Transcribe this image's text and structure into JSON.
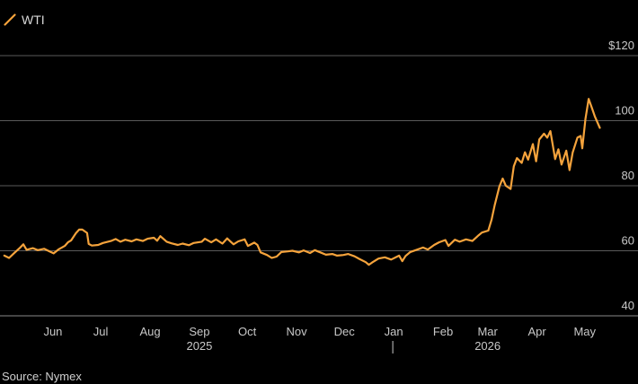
{
  "legend": {
    "series_name": "WTI",
    "color": "#f5a33c"
  },
  "source": "Source: Nymex",
  "chart_data": {
    "type": "line",
    "title": "",
    "xlabel": "",
    "ylabel": "",
    "ylim": [
      40,
      125
    ],
    "y_ticks": [
      {
        "value": 120,
        "label": "$120"
      },
      {
        "value": 100,
        "label": "100"
      },
      {
        "value": 80,
        "label": "80"
      },
      {
        "value": 60,
        "label": "60"
      },
      {
        "value": 40,
        "label": "40"
      }
    ],
    "x_ticks": [
      {
        "date": "2025-06-01",
        "label": "Jun"
      },
      {
        "date": "2025-07-01",
        "label": "Jul"
      },
      {
        "date": "2025-08-01",
        "label": "Aug"
      },
      {
        "date": "2025-09-01",
        "label": "Sep"
      },
      {
        "date": "2025-10-01",
        "label": "Oct"
      },
      {
        "date": "2025-11-01",
        "label": "Nov"
      },
      {
        "date": "2025-12-01",
        "label": "Dec"
      },
      {
        "date": "2026-01-01",
        "label": "Jan"
      },
      {
        "date": "2026-02-01",
        "label": "Feb"
      },
      {
        "date": "2026-03-01",
        "label": "Mar"
      },
      {
        "date": "2026-04-01",
        "label": "Apr"
      },
      {
        "date": "2026-05-01",
        "label": "May"
      }
    ],
    "year_labels": [
      {
        "date": "2025-09-01",
        "label": "2025"
      },
      {
        "date": "2026-03-01",
        "label": "2026"
      }
    ],
    "grid": true,
    "legend_position": "top-left",
    "series": [
      {
        "name": "WTI",
        "color": "#f5a33c",
        "points": [
          [
            "2025-05-02",
            58.5
          ],
          [
            "2025-05-05",
            57.8
          ],
          [
            "2025-05-08",
            59.2
          ],
          [
            "2025-05-12",
            61.0
          ],
          [
            "2025-05-14",
            62.0
          ],
          [
            "2025-05-16",
            60.3
          ],
          [
            "2025-05-20",
            60.8
          ],
          [
            "2025-05-23",
            60.2
          ],
          [
            "2025-05-27",
            60.6
          ],
          [
            "2025-05-30",
            59.9
          ],
          [
            "2025-06-02",
            59.2
          ],
          [
            "2025-06-05",
            60.4
          ],
          [
            "2025-06-09",
            61.5
          ],
          [
            "2025-06-11",
            62.6
          ],
          [
            "2025-06-13",
            63.2
          ],
          [
            "2025-06-16",
            65.4
          ],
          [
            "2025-06-18",
            66.5
          ],
          [
            "2025-06-20",
            66.5
          ],
          [
            "2025-06-23",
            65.5
          ],
          [
            "2025-06-24",
            62.1
          ],
          [
            "2025-06-26",
            61.6
          ],
          [
            "2025-06-30",
            61.8
          ],
          [
            "2025-07-03",
            62.4
          ],
          [
            "2025-07-08",
            63.0
          ],
          [
            "2025-07-11",
            63.6
          ],
          [
            "2025-07-14",
            62.8
          ],
          [
            "2025-07-17",
            63.4
          ],
          [
            "2025-07-21",
            62.9
          ],
          [
            "2025-07-24",
            63.5
          ],
          [
            "2025-07-28",
            63.0
          ],
          [
            "2025-07-31",
            63.7
          ],
          [
            "2025-08-04",
            64.0
          ],
          [
            "2025-08-06",
            63.1
          ],
          [
            "2025-08-08",
            64.5
          ],
          [
            "2025-08-12",
            62.8
          ],
          [
            "2025-08-15",
            62.3
          ],
          [
            "2025-08-19",
            61.8
          ],
          [
            "2025-08-22",
            62.2
          ],
          [
            "2025-08-26",
            61.7
          ],
          [
            "2025-08-29",
            62.4
          ],
          [
            "2025-09-03",
            62.8
          ],
          [
            "2025-09-05",
            63.7
          ],
          [
            "2025-09-09",
            62.6
          ],
          [
            "2025-09-12",
            63.5
          ],
          [
            "2025-09-16",
            62.2
          ],
          [
            "2025-09-19",
            63.8
          ],
          [
            "2025-09-23",
            62.0
          ],
          [
            "2025-09-26",
            62.9
          ],
          [
            "2025-09-30",
            63.5
          ],
          [
            "2025-10-02",
            61.5
          ],
          [
            "2025-10-06",
            62.5
          ],
          [
            "2025-10-08",
            61.8
          ],
          [
            "2025-10-10",
            59.5
          ],
          [
            "2025-10-14",
            58.7
          ],
          [
            "2025-10-17",
            57.8
          ],
          [
            "2025-10-20",
            58.2
          ],
          [
            "2025-10-23",
            59.6
          ],
          [
            "2025-10-27",
            59.8
          ],
          [
            "2025-10-30",
            60.0
          ],
          [
            "2025-11-03",
            59.5
          ],
          [
            "2025-11-06",
            60.1
          ],
          [
            "2025-11-10",
            59.3
          ],
          [
            "2025-11-13",
            60.2
          ],
          [
            "2025-11-17",
            59.4
          ],
          [
            "2025-11-20",
            58.8
          ],
          [
            "2025-11-24",
            59.0
          ],
          [
            "2025-11-27",
            58.5
          ],
          [
            "2025-12-01",
            58.7
          ],
          [
            "2025-12-04",
            59.0
          ],
          [
            "2025-12-08",
            58.3
          ],
          [
            "2025-12-11",
            57.5
          ],
          [
            "2025-12-15",
            56.5
          ],
          [
            "2025-12-17",
            55.7
          ],
          [
            "2025-12-19",
            56.4
          ],
          [
            "2025-12-23",
            57.6
          ],
          [
            "2025-12-27",
            58.0
          ],
          [
            "2025-12-31",
            57.3
          ],
          [
            "2026-01-05",
            58.5
          ],
          [
            "2026-01-07",
            56.8
          ],
          [
            "2026-01-09",
            58.4
          ],
          [
            "2026-01-12",
            59.6
          ],
          [
            "2026-01-15",
            60.1
          ],
          [
            "2026-01-20",
            61.0
          ],
          [
            "2026-01-23",
            60.4
          ],
          [
            "2026-01-27",
            61.8
          ],
          [
            "2026-01-30",
            62.6
          ],
          [
            "2026-02-03",
            63.3
          ],
          [
            "2026-02-05",
            61.5
          ],
          [
            "2026-02-09",
            63.4
          ],
          [
            "2026-02-12",
            62.8
          ],
          [
            "2026-02-16",
            63.5
          ],
          [
            "2026-02-20",
            63.0
          ],
          [
            "2026-02-24",
            64.8
          ],
          [
            "2026-02-26",
            65.6
          ],
          [
            "2026-03-02",
            66.2
          ],
          [
            "2026-03-04",
            69.5
          ],
          [
            "2026-03-06",
            74.0
          ],
          [
            "2026-03-09",
            79.8
          ],
          [
            "2026-03-11",
            82.2
          ],
          [
            "2026-03-13",
            80.0
          ],
          [
            "2026-03-16",
            79.0
          ],
          [
            "2026-03-18",
            86.0
          ],
          [
            "2026-03-20",
            88.5
          ],
          [
            "2026-03-23",
            87.0
          ],
          [
            "2026-03-25",
            90.3
          ],
          [
            "2026-03-27",
            88.0
          ],
          [
            "2026-03-30",
            92.8
          ],
          [
            "2026-04-01",
            87.5
          ],
          [
            "2026-04-03",
            94.2
          ],
          [
            "2026-04-06",
            96.0
          ],
          [
            "2026-04-08",
            94.8
          ],
          [
            "2026-04-10",
            96.8
          ],
          [
            "2026-04-13",
            88.2
          ],
          [
            "2026-04-15",
            91.2
          ],
          [
            "2026-04-17",
            86.5
          ],
          [
            "2026-04-20",
            90.8
          ],
          [
            "2026-04-22",
            84.8
          ],
          [
            "2026-04-24",
            90.2
          ],
          [
            "2026-04-27",
            94.8
          ],
          [
            "2026-04-29",
            95.3
          ],
          [
            "2026-04-30",
            91.5
          ],
          [
            "2026-05-02",
            100.5
          ],
          [
            "2026-05-04",
            106.7
          ],
          [
            "2026-05-06",
            104.0
          ],
          [
            "2026-05-08",
            101.2
          ],
          [
            "2026-05-11",
            97.8
          ]
        ]
      }
    ]
  }
}
